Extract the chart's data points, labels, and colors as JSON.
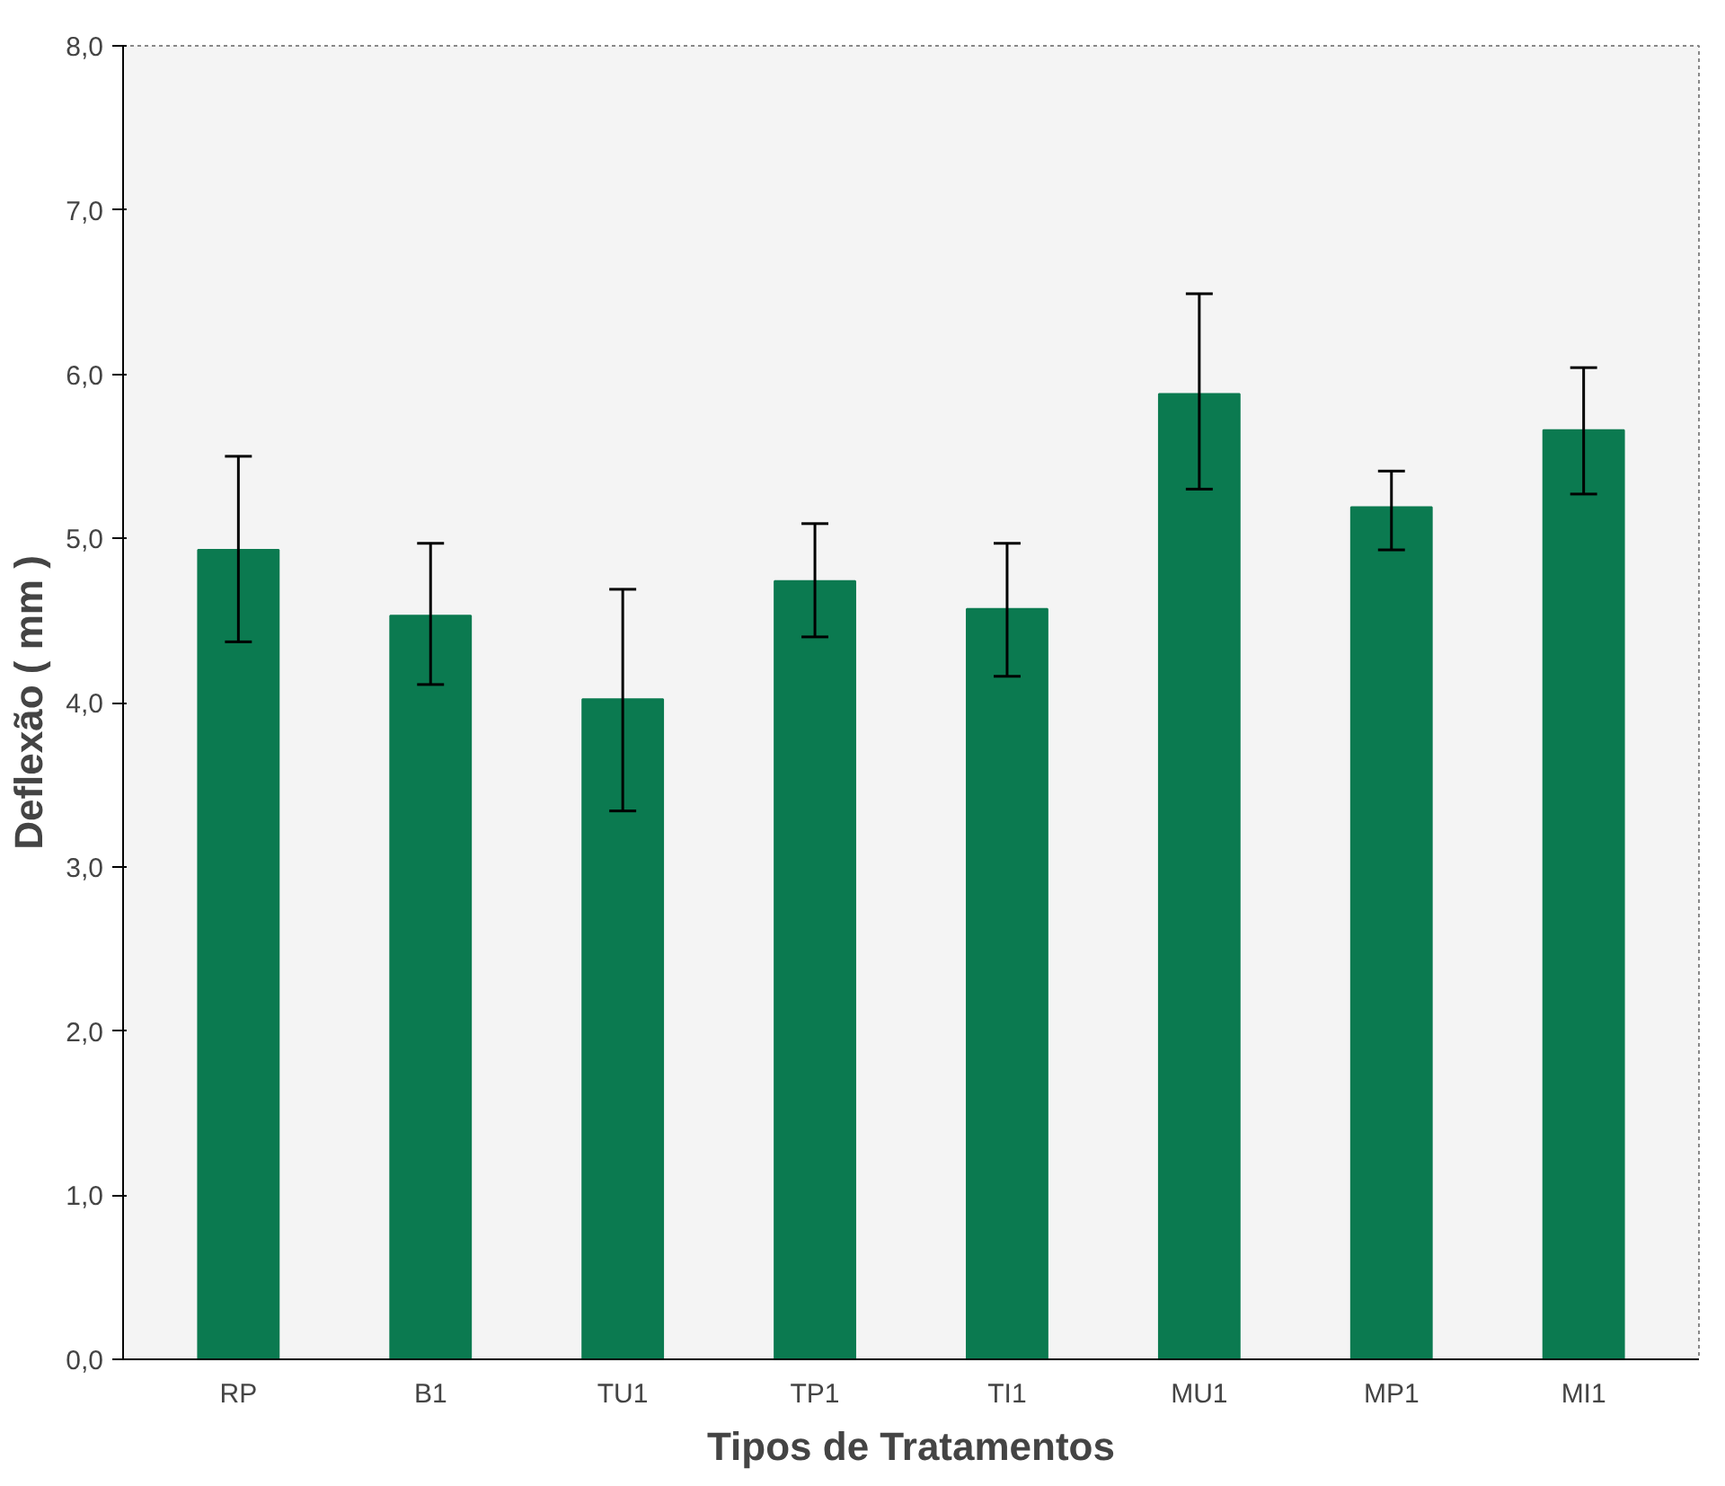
{
  "chart_data": {
    "type": "bar",
    "xlabel": "Tipos de Tratamentos",
    "ylabel": "Deflexão ( mm )",
    "categories": [
      "RP",
      "B1",
      "TU1",
      "TP1",
      "TI1",
      "MU1",
      "MP1",
      "MI1"
    ],
    "values": [
      4.93,
      4.53,
      4.02,
      4.74,
      4.57,
      5.88,
      5.19,
      5.66
    ],
    "errors": [
      [
        4.37,
        5.5
      ],
      [
        4.11,
        4.97
      ],
      [
        3.34,
        4.69
      ],
      [
        4.4,
        5.09
      ],
      [
        4.16,
        4.97
      ],
      [
        5.3,
        6.49
      ],
      [
        4.93,
        5.41
      ],
      [
        5.27,
        6.04
      ]
    ],
    "color": "#0b7a50",
    "ylim": [
      0,
      8
    ],
    "yticks": [
      {
        "value": 0,
        "label": "0,0"
      },
      {
        "value": 1,
        "label": "1,0"
      },
      {
        "value": 2,
        "label": "2,0"
      },
      {
        "value": 3,
        "label": "3,0"
      },
      {
        "value": 4,
        "label": "4,0"
      },
      {
        "value": 5,
        "label": "5,0"
      },
      {
        "value": 6,
        "label": "6,0"
      },
      {
        "value": 7,
        "label": "7,0"
      },
      {
        "value": 8,
        "label": "8,0"
      }
    ],
    "grid": false
  }
}
